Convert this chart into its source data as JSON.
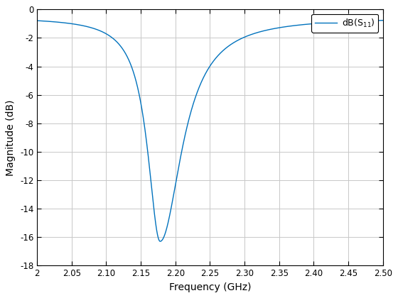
{
  "xlabel": "Frequency (GHz)",
  "ylabel": "Magnitude (dB)",
  "legend_label": "dB(S$_{11}$)",
  "xlim": [
    2.0,
    2.5
  ],
  "ylim": [
    -18,
    0
  ],
  "xticks": [
    2.0,
    2.05,
    2.1,
    2.15,
    2.2,
    2.25,
    2.3,
    2.35,
    2.4,
    2.45,
    2.5
  ],
  "yticks": [
    0,
    -2,
    -4,
    -6,
    -8,
    -10,
    -12,
    -14,
    -16,
    -18
  ],
  "line_color": "#0072BD",
  "line_width": 1.0,
  "resonance_freq": 2.178,
  "resonance_depth": -16.3,
  "baseline": -0.55,
  "background_color": "#ffffff",
  "grid_color": "#c8c8c8",
  "figsize": [
    5.6,
    4.2
  ],
  "dpi": 100,
  "tick_fontsize": 8.5,
  "label_fontsize": 10
}
